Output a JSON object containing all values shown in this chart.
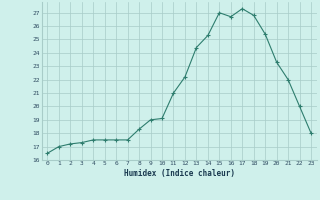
{
  "x": [
    0,
    1,
    2,
    3,
    4,
    5,
    6,
    7,
    8,
    9,
    10,
    11,
    12,
    13,
    14,
    15,
    16,
    17,
    18,
    19,
    20,
    21,
    22,
    23
  ],
  "y": [
    16.5,
    17.0,
    17.2,
    17.3,
    17.5,
    17.5,
    17.5,
    17.5,
    18.3,
    19.0,
    19.1,
    21.0,
    22.2,
    24.4,
    25.3,
    27.0,
    26.7,
    27.3,
    26.8,
    25.4,
    23.3,
    22.0,
    20.0,
    18.0
  ],
  "xlabel": "Humidex (Indice chaleur)",
  "xlim": [
    -0.5,
    23.5
  ],
  "ylim": [
    16,
    27.8
  ],
  "yticks": [
    16,
    17,
    18,
    19,
    20,
    21,
    22,
    23,
    24,
    25,
    26,
    27
  ],
  "xticks": [
    0,
    1,
    2,
    3,
    4,
    5,
    6,
    7,
    8,
    9,
    10,
    11,
    12,
    13,
    14,
    15,
    16,
    17,
    18,
    19,
    20,
    21,
    22,
    23
  ],
  "line_color": "#2e7d6e",
  "bg_color": "#cff0eb",
  "grid_color": "#a8ccc8",
  "tick_label_color": "#2e4a60",
  "xlabel_color": "#1a3a50"
}
